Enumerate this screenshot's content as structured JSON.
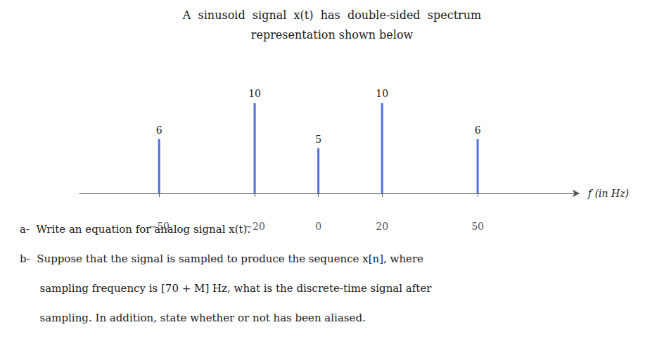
{
  "chart_data": {
    "type": "stem",
    "title": "A  sinusoid  signal  x(t)  has  double-sided  spectrum",
    "subtitle": "representation shown below",
    "x": [
      -50,
      -20,
      0,
      20,
      50
    ],
    "values": [
      6,
      10,
      5,
      10,
      6
    ],
    "data_labels": true,
    "xlim": [
      -75,
      82
    ],
    "xticks": [
      {
        "value": -50,
        "label": "−50"
      },
      {
        "value": -20,
        "label": "−20"
      },
      0,
      20,
      50
    ],
    "ylim": [
      -2.5,
      14
    ],
    "xlabel": "f (in Hz)",
    "tick_labels": "x",
    "grid": false,
    "annotations": [
      "a-  Write an equation for analog signal x(t).",
      "b-  Suppose that the signal is sampled to produce the sequence x[n], where",
      "      sampling frequency is [70 + M] Hz, what is the discrete-time signal after",
      "      sampling. In addition, state whether or not has been aliased."
    ]
  }
}
